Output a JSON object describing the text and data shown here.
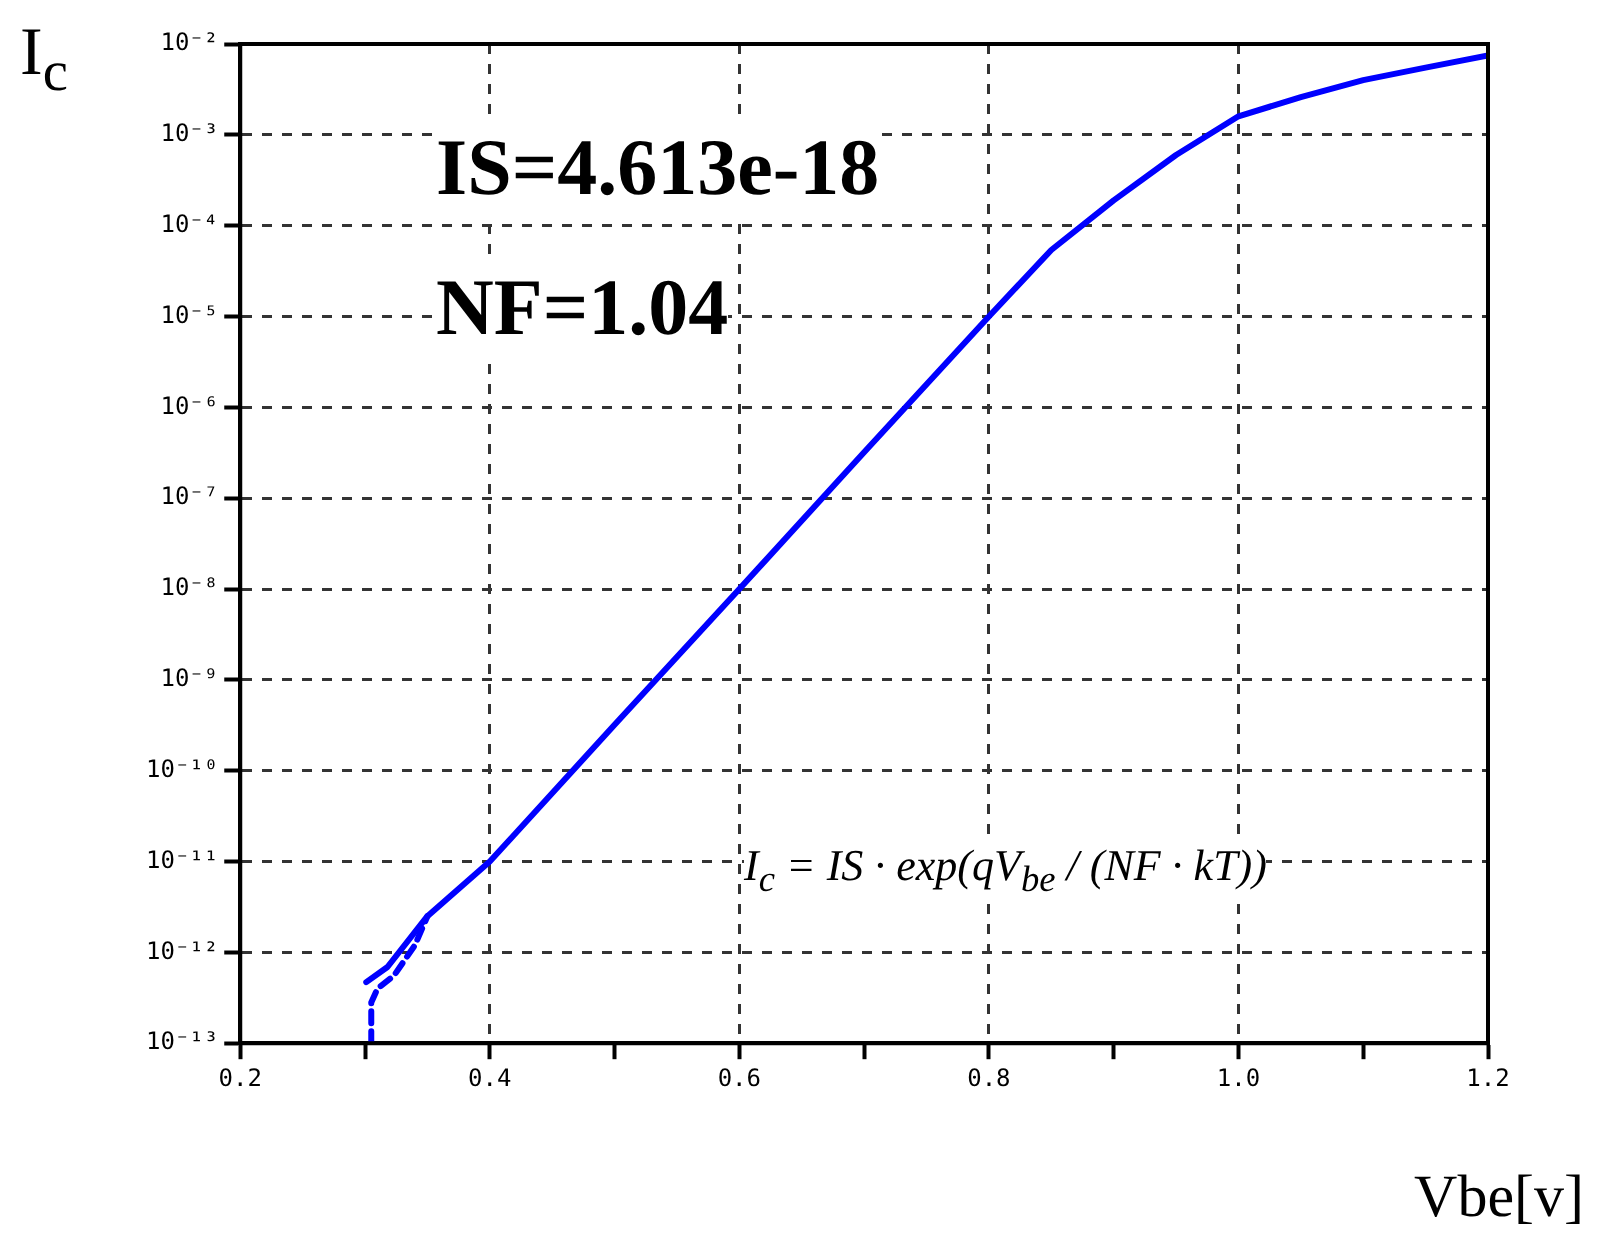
{
  "chart_data": {
    "type": "line",
    "xlabel": "Vbe[v]",
    "ylabel": "I$_{c}$",
    "log": "y",
    "annotations": [
      "IS=4.613e-18",
      "NF=1.04",
      "I$_{c}$ = IS · exp(qV$_{be}$ / (NF · kT))"
    ],
    "xlim": [
      0.2,
      1.2
    ],
    "xticks": [
      0.2,
      {
        "value": 0.3,
        "label": null
      },
      0.4,
      {
        "value": 0.5,
        "label": null
      },
      0.6,
      {
        "value": 0.7,
        "label": null
      },
      0.8,
      {
        "value": 0.9,
        "label": null
      },
      {
        "value": 1,
        "label": "1.0"
      },
      {
        "value": 1.1,
        "label": null
      },
      1.2
    ],
    "ylim": [
      1e-13,
      0.01
    ],
    "yticks": [
      {
        "value": 1e-13,
        "label": "10⁻¹³"
      },
      {
        "value": 1e-12,
        "label": "10⁻¹²"
      },
      {
        "value": 1e-11,
        "label": "10⁻¹¹"
      },
      {
        "value": 1e-10,
        "label": "10⁻¹⁰"
      },
      {
        "value": 1e-09,
        "label": "10⁻⁹"
      },
      {
        "value": 1e-08,
        "label": "10⁻⁸"
      },
      {
        "value": 1e-07,
        "label": "10⁻⁷"
      },
      {
        "value": 1e-06,
        "label": "10⁻⁶"
      },
      {
        "value": 1e-05,
        "label": "10⁻⁵"
      },
      {
        "value": 0.0001,
        "label": "10⁻⁴"
      },
      {
        "value": 0.001,
        "label": "10⁻³"
      },
      {
        "value": 0.01,
        "label": "10⁻²"
      }
    ],
    "grid": true,
    "legend": false,
    "marker": "none",
    "series": [
      {
        "color": "#0000ff",
        "line_style": "solid",
        "x": [
          0.301,
          0.318,
          0.35,
          0.4,
          0.5,
          0.6,
          0.7,
          0.8,
          0.85,
          0.9,
          0.95,
          1.0,
          1.05,
          1.1,
          1.15,
          1.2
        ],
        "values": [
          4.7e-13,
          6.9e-13,
          2.5e-12,
          1e-11,
          3.2e-10,
          1e-08,
          3.2e-07,
          1e-05,
          5.4e-05,
          0.00019,
          0.0006,
          0.0016,
          0.0026,
          0.004,
          0.0055,
          0.0075
        ]
      },
      {
        "color": "#0000ff",
        "line_style": "dashed",
        "x": [
          0.305,
          0.305,
          0.31,
          0.323,
          0.34,
          0.35
        ],
        "values": [
          1e-13,
          2.8e-13,
          4e-13,
          5.5e-13,
          1.2e-12,
          2.5e-12
        ]
      }
    ]
  }
}
